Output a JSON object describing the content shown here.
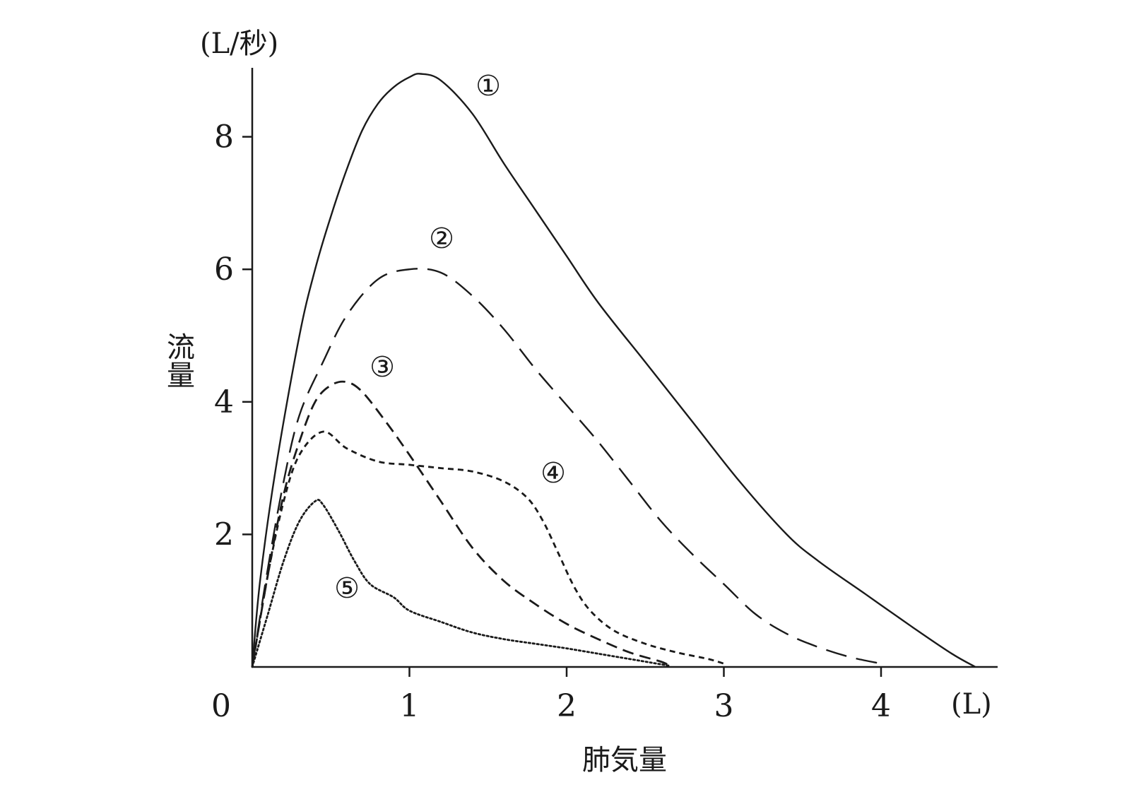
{
  "chart_data": {
    "type": "line",
    "xlabel": "肺気量",
    "ylabel": "流量",
    "x_unit": "(L)",
    "y_unit": "(L/秒)",
    "origin_label": "0",
    "xlim": [
      0,
      4.7
    ],
    "ylim": [
      0,
      9.0
    ],
    "x_ticks": [
      1,
      2,
      3,
      4
    ],
    "x_tick_labels": [
      "1",
      "2",
      "3",
      "4"
    ],
    "y_ticks": [
      2,
      4,
      6,
      8
    ],
    "y_tick_labels": [
      "2",
      "4",
      "6",
      "8"
    ],
    "grid": false,
    "series": [
      {
        "name": "①",
        "line_style": "solid",
        "points": [
          [
            0,
            0
          ],
          [
            0.05,
            1.3
          ],
          [
            0.15,
            3.0
          ],
          [
            0.3,
            5.0
          ],
          [
            0.4,
            6.0
          ],
          [
            0.5,
            6.8
          ],
          [
            0.6,
            7.5
          ],
          [
            0.7,
            8.1
          ],
          [
            0.8,
            8.5
          ],
          [
            0.9,
            8.75
          ],
          [
            1.0,
            8.9
          ],
          [
            1.07,
            8.95
          ],
          [
            1.2,
            8.85
          ],
          [
            1.4,
            8.35
          ],
          [
            1.6,
            7.6
          ],
          [
            1.8,
            6.9
          ],
          [
            2.0,
            6.2
          ],
          [
            2.2,
            5.5
          ],
          [
            2.5,
            4.6
          ],
          [
            2.8,
            3.7
          ],
          [
            3.1,
            2.8
          ],
          [
            3.4,
            2.0
          ],
          [
            3.6,
            1.6
          ],
          [
            3.9,
            1.1
          ],
          [
            4.2,
            0.6
          ],
          [
            4.45,
            0.2
          ],
          [
            4.6,
            0.0
          ]
        ]
      },
      {
        "name": "②",
        "line_style": "long-dash",
        "points": [
          [
            0,
            0
          ],
          [
            0.1,
            1.5
          ],
          [
            0.2,
            2.8
          ],
          [
            0.3,
            3.8
          ],
          [
            0.45,
            4.6
          ],
          [
            0.6,
            5.3
          ],
          [
            0.8,
            5.85
          ],
          [
            1.0,
            6.0
          ],
          [
            1.2,
            5.95
          ],
          [
            1.4,
            5.6
          ],
          [
            1.6,
            5.1
          ],
          [
            1.8,
            4.5
          ],
          [
            2.0,
            3.95
          ],
          [
            2.2,
            3.4
          ],
          [
            2.4,
            2.8
          ],
          [
            2.6,
            2.2
          ],
          [
            2.8,
            1.7
          ],
          [
            3.0,
            1.25
          ],
          [
            3.2,
            0.8
          ],
          [
            3.4,
            0.5
          ],
          [
            3.6,
            0.3
          ],
          [
            3.8,
            0.15
          ],
          [
            4.0,
            0.05
          ]
        ]
      },
      {
        "name": "③",
        "line_style": "dash",
        "points": [
          [
            0,
            0
          ],
          [
            0.1,
            1.4
          ],
          [
            0.2,
            2.6
          ],
          [
            0.3,
            3.4
          ],
          [
            0.4,
            4.0
          ],
          [
            0.5,
            4.25
          ],
          [
            0.6,
            4.3
          ],
          [
            0.7,
            4.15
          ],
          [
            0.85,
            3.7
          ],
          [
            1.0,
            3.2
          ],
          [
            1.2,
            2.5
          ],
          [
            1.4,
            1.8
          ],
          [
            1.6,
            1.3
          ],
          [
            1.8,
            0.95
          ],
          [
            2.0,
            0.65
          ],
          [
            2.2,
            0.42
          ],
          [
            2.4,
            0.22
          ],
          [
            2.6,
            0.08
          ],
          [
            2.65,
            0.02
          ]
        ]
      },
      {
        "name": "④",
        "line_style": "short-dash",
        "points": [
          [
            0,
            0
          ],
          [
            0.1,
            1.4
          ],
          [
            0.2,
            2.5
          ],
          [
            0.3,
            3.2
          ],
          [
            0.45,
            3.55
          ],
          [
            0.6,
            3.3
          ],
          [
            0.8,
            3.1
          ],
          [
            1.0,
            3.05
          ],
          [
            1.2,
            3.0
          ],
          [
            1.4,
            2.95
          ],
          [
            1.6,
            2.8
          ],
          [
            1.75,
            2.55
          ],
          [
            1.85,
            2.2
          ],
          [
            1.95,
            1.7
          ],
          [
            2.05,
            1.2
          ],
          [
            2.15,
            0.85
          ],
          [
            2.3,
            0.55
          ],
          [
            2.5,
            0.35
          ],
          [
            2.7,
            0.22
          ],
          [
            2.9,
            0.12
          ],
          [
            3.0,
            0.05
          ]
        ]
      },
      {
        "name": "⑤",
        "line_style": "dotted",
        "points": [
          [
            0,
            0
          ],
          [
            0.1,
            0.8
          ],
          [
            0.2,
            1.6
          ],
          [
            0.3,
            2.2
          ],
          [
            0.4,
            2.5
          ],
          [
            0.45,
            2.45
          ],
          [
            0.55,
            2.05
          ],
          [
            0.65,
            1.6
          ],
          [
            0.75,
            1.25
          ],
          [
            0.9,
            1.05
          ],
          [
            1.0,
            0.85
          ],
          [
            1.2,
            0.68
          ],
          [
            1.4,
            0.52
          ],
          [
            1.6,
            0.42
          ],
          [
            1.8,
            0.35
          ],
          [
            2.0,
            0.28
          ],
          [
            2.2,
            0.2
          ],
          [
            2.4,
            0.12
          ],
          [
            2.55,
            0.06
          ],
          [
            2.65,
            0.02
          ]
        ]
      }
    ]
  }
}
